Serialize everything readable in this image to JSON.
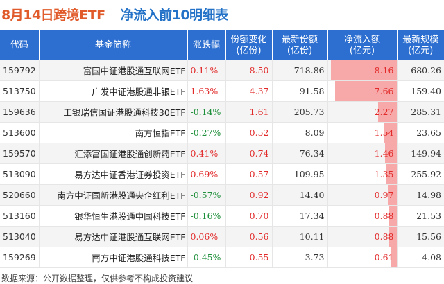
{
  "title": {
    "date_part": "8月14日跨境ETF",
    "main_part": "净流入前10明细表"
  },
  "columns": [
    "代码",
    "基金简称",
    "涨跌幅",
    "份额变化\n(亿份)",
    "最新份额\n(亿份)",
    "净流入额\n(亿元)",
    "最新规模\n(亿元)"
  ],
  "rows": [
    {
      "code": "159792",
      "name": "富国中证港股通互联网ETF",
      "change": "0.11%",
      "share_change": "8.50",
      "latest_share": "718.86",
      "net_inflow": "8.16",
      "inflow_value": 8.16,
      "scale": "680.26"
    },
    {
      "code": "513750",
      "name": "广发中证港股通非银ETF",
      "change": "1.63%",
      "share_change": "4.37",
      "latest_share": "91.58",
      "net_inflow": "7.66",
      "inflow_value": 7.66,
      "scale": "159.40"
    },
    {
      "code": "159636",
      "name": "工银瑞信国证港股通科技30ETF",
      "change": "-0.14%",
      "share_change": "1.61",
      "latest_share": "205.73",
      "net_inflow": "2.27",
      "inflow_value": 2.27,
      "scale": "285.31"
    },
    {
      "code": "513600",
      "name": "南方恒指ETF",
      "change": "-0.27%",
      "share_change": "0.52",
      "latest_share": "8.09",
      "net_inflow": "1.54",
      "inflow_value": 1.54,
      "scale": "23.65"
    },
    {
      "code": "159570",
      "name": "汇添富国证港股通创新药ETF",
      "change": "0.41%",
      "share_change": "0.74",
      "latest_share": "76.34",
      "net_inflow": "1.46",
      "inflow_value": 1.46,
      "scale": "149.94"
    },
    {
      "code": "513090",
      "name": "易方达中证香港证券投资ETF",
      "change": "0.69%",
      "share_change": "0.57",
      "latest_share": "109.95",
      "net_inflow": "1.35",
      "inflow_value": 1.35,
      "scale": "255.92"
    },
    {
      "code": "520660",
      "name": "南方中证国新港股通央企红利ETF",
      "change": "-0.57%",
      "share_change": "0.92",
      "latest_share": "14.40",
      "net_inflow": "0.97",
      "inflow_value": 0.97,
      "scale": "14.98"
    },
    {
      "code": "513160",
      "name": "银华恒生港股通中国科技ETF",
      "change": "-0.16%",
      "share_change": "0.70",
      "latest_share": "17.34",
      "net_inflow": "0.88",
      "inflow_value": 0.88,
      "scale": "21.53"
    },
    {
      "code": "513040",
      "name": "易方达中证港股通互联网ETF",
      "change": "0.06%",
      "share_change": "0.56",
      "latest_share": "10.11",
      "net_inflow": "0.88",
      "inflow_value": 0.88,
      "scale": "15.56"
    },
    {
      "code": "159269",
      "name": "南方中证港股通科技ETF",
      "change": "-0.45%",
      "share_change": "0.55",
      "latest_share": "3.73",
      "net_inflow": "0.61",
      "inflow_value": 0.61,
      "scale": "4.08"
    }
  ],
  "footer": "数据来源：公开数据整理，仅供参考不构成投资建议",
  "colors": {
    "header_bg": "#2c6fd1",
    "title_orange": "#e05a2a",
    "title_blue": "#2472c8",
    "up_red": "#e22a2a",
    "down_green": "#1e8f3a",
    "bar_pink": "#f7a8a8"
  }
}
